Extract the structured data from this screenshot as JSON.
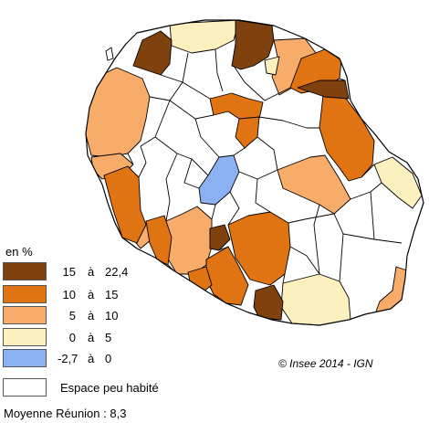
{
  "legend": {
    "title": "en %",
    "classes": [
      {
        "min": "15",
        "sep": "à",
        "max": "22,4",
        "color": "#7f420f"
      },
      {
        "min": "10",
        "sep": "à",
        "max": "15",
        "color": "#e07312"
      },
      {
        "min": "5",
        "sep": "à",
        "max": "10",
        "color": "#f8ac6a"
      },
      {
        "min": "0",
        "sep": "à",
        "max": "5",
        "color": "#fdf0bf"
      },
      {
        "min": "-2,7",
        "sep": "à",
        "max": "0",
        "color": "#8cb1f3"
      }
    ],
    "sparse": {
      "label": "Espace peu habité",
      "color": "#ffffff"
    }
  },
  "source": "© Insee 2014 - IGN",
  "average": "Moyenne Réunion : 8,3",
  "map": {
    "border_color": "#000000",
    "sparse_color": "#ffffff"
  }
}
